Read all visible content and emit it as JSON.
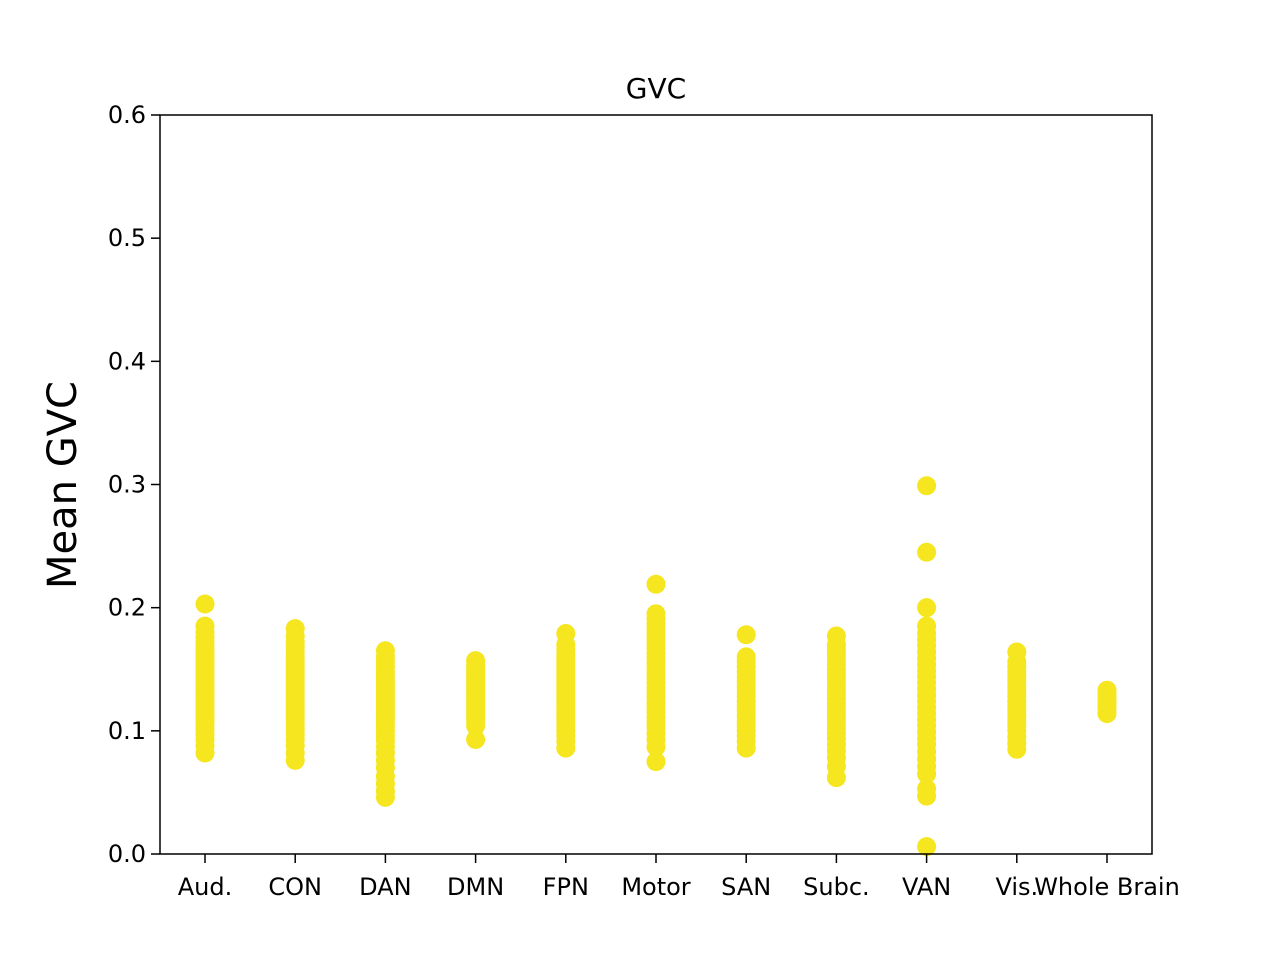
{
  "chart_data": {
    "type": "scatter",
    "title": "GVC",
    "xlabel": "",
    "ylabel": "Mean GVC",
    "ylim": [
      0.0,
      0.6
    ],
    "yticks": [
      "0.0",
      "0.1",
      "0.2",
      "0.3",
      "0.4",
      "0.5",
      "0.6"
    ],
    "grid": false,
    "marker_color": "#f5e61f",
    "categories": [
      "Aud.",
      "CON",
      "DAN",
      "DMN",
      "FPN",
      "Motor",
      "SAN",
      "Subc.",
      "VAN",
      "Vis.",
      "Whole Brain"
    ],
    "series": [
      {
        "values": [
          [
            0.082,
            0.088,
            0.093,
            0.097,
            0.101,
            0.105,
            0.108,
            0.111,
            0.114,
            0.117,
            0.12,
            0.123,
            0.126,
            0.129,
            0.132,
            0.135,
            0.138,
            0.141,
            0.144,
            0.147,
            0.15,
            0.153,
            0.156,
            0.159,
            0.162,
            0.165,
            0.168,
            0.172,
            0.176,
            0.18,
            0.185,
            0.203
          ],
          [
            0.076,
            0.082,
            0.088,
            0.093,
            0.097,
            0.101,
            0.105,
            0.109,
            0.112,
            0.115,
            0.118,
            0.121,
            0.124,
            0.127,
            0.13,
            0.133,
            0.136,
            0.139,
            0.142,
            0.145,
            0.148,
            0.151,
            0.154,
            0.157,
            0.16,
            0.164,
            0.168,
            0.172,
            0.177,
            0.183
          ],
          [
            0.046,
            0.051,
            0.057,
            0.063,
            0.07,
            0.076,
            0.082,
            0.087,
            0.092,
            0.096,
            0.1,
            0.104,
            0.108,
            0.111,
            0.114,
            0.117,
            0.12,
            0.123,
            0.126,
            0.129,
            0.132,
            0.135,
            0.138,
            0.141,
            0.144,
            0.148,
            0.152,
            0.156,
            0.16,
            0.165
          ],
          [
            0.093,
            0.104,
            0.108,
            0.111,
            0.114,
            0.117,
            0.12,
            0.123,
            0.126,
            0.129,
            0.132,
            0.135,
            0.138,
            0.141,
            0.144,
            0.147,
            0.15,
            0.153,
            0.157
          ],
          [
            0.086,
            0.091,
            0.096,
            0.1,
            0.104,
            0.108,
            0.111,
            0.114,
            0.117,
            0.12,
            0.123,
            0.126,
            0.129,
            0.132,
            0.135,
            0.138,
            0.141,
            0.144,
            0.147,
            0.15,
            0.153,
            0.156,
            0.159,
            0.162,
            0.166,
            0.17,
            0.179
          ],
          [
            0.075,
            0.087,
            0.093,
            0.098,
            0.103,
            0.107,
            0.111,
            0.115,
            0.119,
            0.123,
            0.127,
            0.131,
            0.135,
            0.139,
            0.143,
            0.147,
            0.151,
            0.155,
            0.159,
            0.163,
            0.167,
            0.171,
            0.175,
            0.179,
            0.183,
            0.187,
            0.191,
            0.195,
            0.219
          ],
          [
            0.086,
            0.091,
            0.096,
            0.1,
            0.104,
            0.108,
            0.112,
            0.116,
            0.12,
            0.124,
            0.128,
            0.132,
            0.136,
            0.14,
            0.144,
            0.148,
            0.152,
            0.156,
            0.16,
            0.178
          ],
          [
            0.062,
            0.071,
            0.078,
            0.084,
            0.089,
            0.094,
            0.098,
            0.102,
            0.106,
            0.11,
            0.114,
            0.118,
            0.122,
            0.126,
            0.13,
            0.134,
            0.138,
            0.142,
            0.146,
            0.15,
            0.154,
            0.158,
            0.162,
            0.166,
            0.17,
            0.177
          ],
          [
            0.006,
            0.047,
            0.053,
            0.065,
            0.071,
            0.077,
            0.083,
            0.089,
            0.094,
            0.099,
            0.104,
            0.109,
            0.114,
            0.119,
            0.124,
            0.129,
            0.134,
            0.139,
            0.144,
            0.149,
            0.154,
            0.159,
            0.164,
            0.169,
            0.174,
            0.179,
            0.185,
            0.2,
            0.245,
            0.299
          ],
          [
            0.085,
            0.09,
            0.095,
            0.1,
            0.104,
            0.108,
            0.112,
            0.116,
            0.12,
            0.124,
            0.128,
            0.132,
            0.136,
            0.14,
            0.144,
            0.148,
            0.152,
            0.156,
            0.164
          ],
          [
            0.114,
            0.118,
            0.121,
            0.124,
            0.127,
            0.13,
            0.133
          ]
        ]
      }
    ]
  }
}
